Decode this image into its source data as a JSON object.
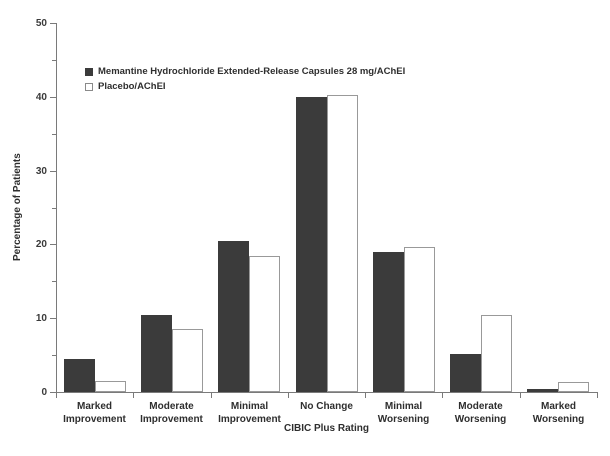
{
  "chart_data": {
    "type": "bar",
    "title": "",
    "xlabel": "CIBIC Plus Rating",
    "ylabel": "Percentage of Patients",
    "ylim": [
      0,
      50
    ],
    "y_major_ticks": [
      0,
      10,
      20,
      30,
      40,
      50
    ],
    "y_minor_tick_step": 5,
    "grid": false,
    "legend_position": "upper-left",
    "categories": [
      "Marked Improvement",
      "Moderate Improvement",
      "Minimal Improvement",
      "No Change",
      "Minimal Worsening",
      "Moderate Worsening",
      "Marked Worsening"
    ],
    "category_lines": [
      [
        "Marked",
        "Improvement"
      ],
      [
        "Moderate",
        "Improvement"
      ],
      [
        "Minimal",
        "Improvement"
      ],
      [
        "No Change"
      ],
      [
        "Minimal",
        "Worsening"
      ],
      [
        "Moderate",
        "Worsening"
      ],
      [
        "Marked",
        "Worsening"
      ]
    ],
    "series": [
      {
        "name": "Memantine Hydrochloride Extended-Release Capsules 28 mg/AChEI",
        "style": "filled",
        "fill": "#3b3b3b",
        "values": [
          4.5,
          10.4,
          20.5,
          40.0,
          19.0,
          5.2,
          0.4
        ]
      },
      {
        "name": "Placebo/AChEI",
        "style": "open",
        "fill": "#ffffff",
        "border": "#999999",
        "values": [
          1.5,
          8.5,
          18.4,
          40.3,
          19.6,
          10.4,
          1.4
        ]
      }
    ],
    "colors": {
      "axis": "#7a7a7a",
      "text": "#2e2e2e",
      "background": "#ffffff"
    }
  }
}
